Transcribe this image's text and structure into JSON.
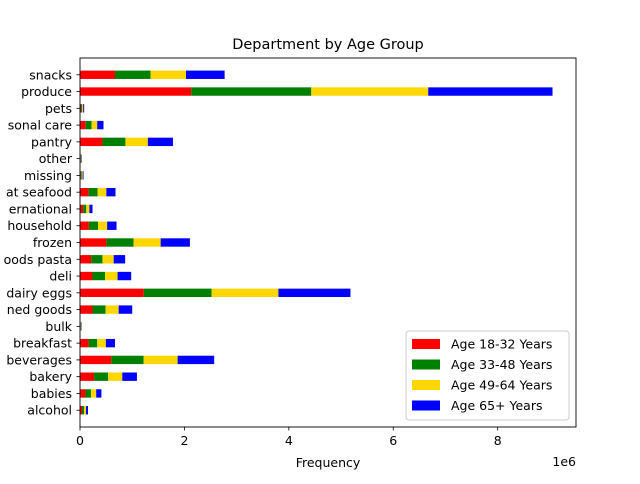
{
  "chart_data": {
    "type": "bar",
    "orientation": "horizontal",
    "stacked": true,
    "title": "Department by Age Group",
    "xlabel": "Frequency",
    "ylabel": "",
    "x_scale_label": "1e6",
    "x_scale_factor": 1000000,
    "xlim": [
      0,
      9500000
    ],
    "x_ticks": [
      0,
      2,
      4,
      6,
      8
    ],
    "grid": false,
    "legend_position": "lower-right",
    "categories": [
      "alcohol",
      "babies",
      "bakery",
      "beverages",
      "breakfast",
      "bulk",
      "canned goods",
      "dairy eggs",
      "deli",
      "dry goods pasta",
      "frozen",
      "household",
      "international",
      "meat seafood",
      "missing",
      "other",
      "pantry",
      "personal care",
      "pets",
      "produce",
      "snacks"
    ],
    "category_labels_as_shown": [
      "alcohol",
      "babies",
      "bakery",
      "beverages",
      "breakfast",
      "bulk",
      "ned goods",
      "dairy eggs",
      "deli",
      "oods pasta",
      "frozen",
      "household",
      "ernational",
      "at seafood",
      "missing",
      "other",
      "pantry",
      "sonal care",
      "pets",
      "produce",
      "snacks"
    ],
    "series": [
      {
        "name": "Age 18-32 Years",
        "color": "#ff0000",
        "values": [
          38000,
          105000,
          270000,
          600000,
          165000,
          8000,
          240000,
          1220000,
          240000,
          215000,
          505000,
          170000,
          60000,
          165000,
          17000,
          8000,
          430000,
          110000,
          20000,
          2130000,
          670000
        ]
      },
      {
        "name": "Age 33-48 Years",
        "color": "#008000",
        "values": [
          40000,
          105000,
          270000,
          620000,
          165000,
          8000,
          250000,
          1300000,
          240000,
          215000,
          520000,
          175000,
          60000,
          170000,
          17000,
          9000,
          440000,
          110000,
          20000,
          2300000,
          680000
        ]
      },
      {
        "name": "Age 49-64 Years",
        "color": "#ffd700",
        "values": [
          37000,
          100000,
          270000,
          650000,
          165000,
          8000,
          250000,
          1280000,
          240000,
          215000,
          520000,
          175000,
          60000,
          170000,
          17000,
          9000,
          430000,
          110000,
          20000,
          2240000,
          680000
        ]
      },
      {
        "name": "Age 65+ Years",
        "color": "#0000ff",
        "values": [
          38000,
          100000,
          280000,
          700000,
          175000,
          8000,
          260000,
          1380000,
          260000,
          220000,
          560000,
          180000,
          60000,
          175000,
          17000,
          9000,
          480000,
          120000,
          20000,
          2380000,
          740000
        ]
      }
    ]
  }
}
